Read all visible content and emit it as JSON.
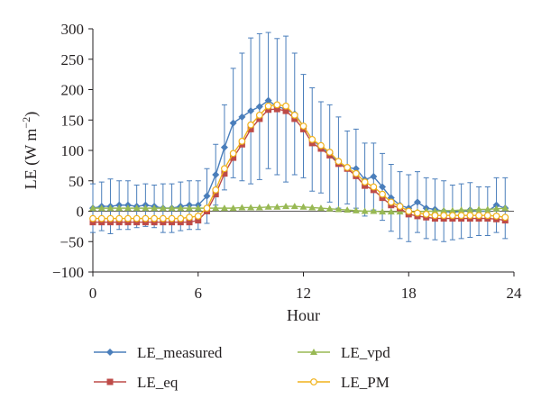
{
  "chart_data": {
    "type": "line",
    "ylabel_main": "LE (W m",
    "ylabel_sup": "−2",
    "ylabel_close": ")",
    "xlabel": "Hour",
    "xlim": [
      0,
      24
    ],
    "ylim": [
      -100,
      300
    ],
    "xticks": [
      0,
      6,
      12,
      18,
      24
    ],
    "yticks": [
      -100,
      -50,
      0,
      50,
      100,
      150,
      200,
      250,
      300
    ],
    "ytick_labels": [
      "−100",
      "−50",
      "0",
      "50",
      "100",
      "150",
      "200",
      "250",
      "300"
    ],
    "grid": false,
    "legend_position": "bottom",
    "x": [
      0,
      0.5,
      1,
      1.5,
      2,
      2.5,
      3,
      3.5,
      4,
      4.5,
      5,
      5.5,
      6,
      6.5,
      7,
      7.5,
      8,
      8.5,
      9,
      9.5,
      10,
      10.5,
      11,
      11.5,
      12,
      12.5,
      13,
      13.5,
      14,
      14.5,
      15,
      15.5,
      16,
      16.5,
      17,
      17.5,
      18,
      18.5,
      19,
      19.5,
      20,
      20.5,
      21,
      21.5,
      22,
      22.5,
      23,
      23.5
    ],
    "series": [
      {
        "name": "LE_measured",
        "color": "#4a7ebb",
        "marker": "diamond",
        "values": [
          5,
          8,
          8,
          10,
          10,
          8,
          10,
          8,
          5,
          5,
          8,
          10,
          10,
          25,
          60,
          105,
          145,
          155,
          165,
          172,
          182,
          172,
          168,
          160,
          140,
          118,
          105,
          95,
          80,
          72,
          70,
          52,
          57,
          40,
          22,
          10,
          5,
          15,
          5,
          3,
          0,
          -2,
          0,
          2,
          0,
          0,
          10,
          5
        ],
        "error": [
          40,
          40,
          45,
          40,
          40,
          35,
          35,
          35,
          40,
          40,
          40,
          40,
          40,
          45,
          50,
          70,
          90,
          105,
          120,
          120,
          112,
          112,
          120,
          100,
          85,
          85,
          75,
          80,
          75,
          60,
          65,
          60,
          55,
          55,
          55,
          55,
          55,
          50,
          50,
          50,
          50,
          45,
          45,
          45,
          40,
          40,
          45,
          50
        ]
      },
      {
        "name": "LE_vpd",
        "color": "#98b954",
        "marker": "triangle",
        "values": [
          5,
          5,
          5,
          5,
          5,
          5,
          5,
          5,
          5,
          5,
          5,
          5,
          5,
          5,
          5,
          5,
          5,
          6,
          6,
          6,
          7,
          7,
          8,
          8,
          7,
          6,
          5,
          4,
          3,
          2,
          1,
          0,
          0,
          -1,
          -1,
          -1,
          -1,
          -1,
          0,
          0,
          1,
          1,
          2,
          2,
          3,
          3,
          4,
          5
        ]
      },
      {
        "name": "LE_eq",
        "color": "#be4b48",
        "marker": "square",
        "values": [
          -18,
          -18,
          -18,
          -18,
          -18,
          -18,
          -18,
          -18,
          -18,
          -18,
          -18,
          -18,
          -15,
          0,
          28,
          62,
          88,
          110,
          135,
          152,
          167,
          168,
          165,
          152,
          135,
          112,
          103,
          92,
          78,
          70,
          58,
          42,
          35,
          22,
          10,
          5,
          -5,
          -8,
          -10,
          -12,
          -12,
          -12,
          -12,
          -12,
          -12,
          -12,
          -13,
          -15
        ]
      },
      {
        "name": "LE_PM",
        "color": "#f0b21b",
        "marker": "circle",
        "values": [
          -12,
          -12,
          -12,
          -12,
          -12,
          -12,
          -12,
          -12,
          -12,
          -12,
          -12,
          -10,
          -8,
          5,
          35,
          70,
          95,
          115,
          142,
          158,
          173,
          175,
          173,
          158,
          140,
          118,
          108,
          97,
          82,
          72,
          62,
          48,
          40,
          28,
          15,
          8,
          0,
          -3,
          -5,
          -7,
          -7,
          -7,
          -7,
          -7,
          -7,
          -7,
          -8,
          -10
        ]
      }
    ],
    "legend_order": [
      "LE_measured",
      "LE_vpd",
      "LE_eq",
      "LE_PM"
    ]
  }
}
